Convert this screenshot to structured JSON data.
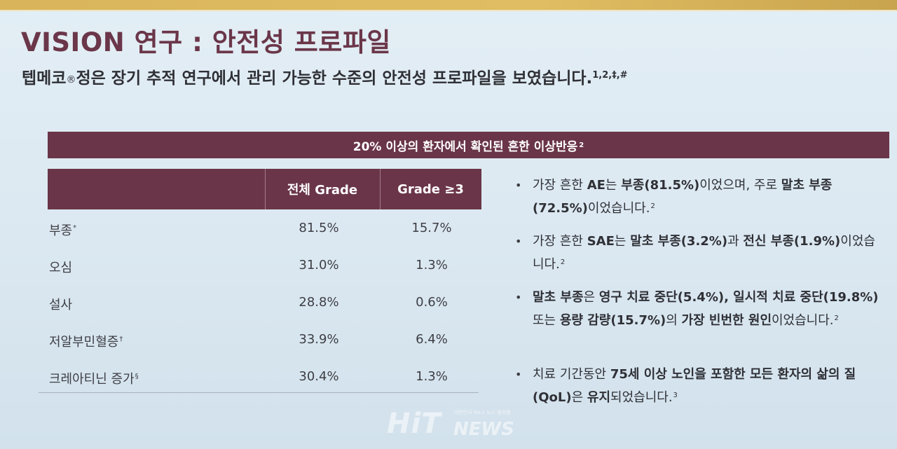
{
  "header": {
    "title": "VISION 연구 : 안전성 프로파일",
    "subtitle_pre": "텝메코",
    "subtitle_reg": "®",
    "subtitle_post": "정은 장기 추적 연구에서 관리 가능한 수준의 안전성 프로파일을 보였습니다.",
    "subtitle_refs": "1,2,‡,#"
  },
  "section": {
    "label": "20% 이상의 환자에서 확인된 흔한 이상반응",
    "ref": "2"
  },
  "table": {
    "columns": [
      "전체 Grade",
      "Grade ≥3"
    ],
    "rows": [
      {
        "name": "부종",
        "mark": "*",
        "all": "81.5%",
        "g3": "15.7%"
      },
      {
        "name": "오심",
        "mark": "",
        "all": "31.0%",
        "g3": "1.3%"
      },
      {
        "name": "설사",
        "mark": "",
        "all": "28.8%",
        "g3": "0.6%"
      },
      {
        "name": "저알부민혈증",
        "mark": "†",
        "all": "33.9%",
        "g3": "6.4%"
      },
      {
        "name": "크레아티닌 증가",
        "mark": "§",
        "all": "30.4%",
        "g3": "1.3%"
      }
    ]
  },
  "bullets": {
    "dot": "•",
    "b1": {
      "p1": "가장 흔한 ",
      "b1": "AE",
      "p2": "는 ",
      "b2": "부종(81.5%)",
      "p3": "이었으며, 주로 ",
      "b3": "말초 부종(72.5%)",
      "p4": "이었습니다.",
      "ref": "2"
    },
    "b2": {
      "p1": "가장 흔한 ",
      "b1": "SAE",
      "p2": "는 ",
      "b2": "말초 부종(3.2%)",
      "p3": "과 ",
      "b3": "전신 부종(1.9%)",
      "p4": "이었습니다.",
      "ref": "2"
    },
    "b3": {
      "b1": "말초 부종",
      "p1": "은 ",
      "b2": "영구 치료 중단(5.4%), 일시적 치료 중단(19.8%)",
      "p2": " 또는 ",
      "b3": "용량 감량(15.7%)",
      "p3": "의 ",
      "b4": "가장 빈번한 원인",
      "p4": "이었습니다.",
      "ref": "2"
    },
    "b4": {
      "p1": "치료 기간동안 ",
      "b1": "75세 이상 노인을 포함한 모든 환자의 삶의 질(QoL)",
      "p2": "은 ",
      "b2": "유지",
      "p3": "되었습니다.",
      "ref": "3"
    }
  },
  "watermark": {
    "brand": "HiT",
    "news": "NEWS",
    "tag": "대한민국 No.1 뉴스 플랫폼"
  },
  "colors": {
    "accent_maroon": "#6a3548",
    "title_color": "#6b3649",
    "top_bar_gold": "#d9b45a",
    "background": "#dbe8f1"
  }
}
